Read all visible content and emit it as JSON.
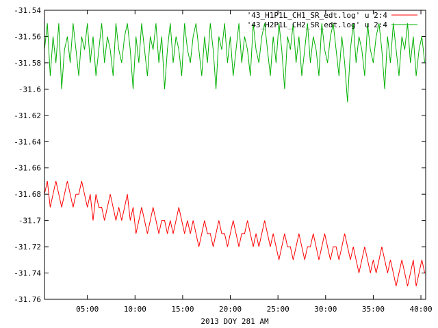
{
  "chart_data": {
    "type": "line",
    "xlabel": "2013 DOY 281 AM",
    "ylabel": "",
    "title": "",
    "xlim": [
      0.5,
      40.5
    ],
    "ylim": [
      -31.76,
      -31.54
    ],
    "x_ticks": [
      {
        "value": 5,
        "label": "05:00"
      },
      {
        "value": 10,
        "label": "10:00"
      },
      {
        "value": 15,
        "label": "15:00"
      },
      {
        "value": 20,
        "label": "20:00"
      },
      {
        "value": 25,
        "label": "25:00"
      },
      {
        "value": 30,
        "label": "30:00"
      },
      {
        "value": 35,
        "label": "35:00"
      },
      {
        "value": 40,
        "label": "40:00"
      }
    ],
    "y_ticks": [
      {
        "value": -31.54,
        "label": "-31.54"
      },
      {
        "value": -31.56,
        "label": "-31.56"
      },
      {
        "value": -31.58,
        "label": "-31.58"
      },
      {
        "value": -31.6,
        "label": "-31.6"
      },
      {
        "value": -31.62,
        "label": "-31.62"
      },
      {
        "value": -31.64,
        "label": "-31.64"
      },
      {
        "value": -31.66,
        "label": "-31.66"
      },
      {
        "value": -31.68,
        "label": "-31.68"
      },
      {
        "value": -31.7,
        "label": "-31.7"
      },
      {
        "value": -31.72,
        "label": "-31.72"
      },
      {
        "value": -31.74,
        "label": "-31.74"
      },
      {
        "value": -31.76,
        "label": "-31.76"
      }
    ],
    "grid": false,
    "legend_position": "top-right",
    "series": [
      {
        "name": "'43_H1P1L_CH1_SR_edt.log' u 2:4",
        "color": "#ff0000",
        "x": [
          0.5,
          0.8,
          1.1,
          1.4,
          1.7,
          2.0,
          2.3,
          2.6,
          2.9,
          3.2,
          3.5,
          3.8,
          4.1,
          4.4,
          4.7,
          5.0,
          5.3,
          5.6,
          5.9,
          6.2,
          6.5,
          6.8,
          7.1,
          7.4,
          7.7,
          8.0,
          8.3,
          8.6,
          8.9,
          9.2,
          9.5,
          9.8,
          10.1,
          10.4,
          10.7,
          11.0,
          11.3,
          11.6,
          11.9,
          12.2,
          12.5,
          12.8,
          13.1,
          13.4,
          13.7,
          14.0,
          14.3,
          14.6,
          14.9,
          15.2,
          15.5,
          15.8,
          16.1,
          16.4,
          16.7,
          17.0,
          17.3,
          17.6,
          17.9,
          18.2,
          18.5,
          18.8,
          19.1,
          19.4,
          19.7,
          20.0,
          20.3,
          20.6,
          20.9,
          21.2,
          21.5,
          21.8,
          22.1,
          22.4,
          22.7,
          23.0,
          23.3,
          23.6,
          23.9,
          24.2,
          24.5,
          24.8,
          25.1,
          25.4,
          25.7,
          26.0,
          26.3,
          26.6,
          26.9,
          27.2,
          27.5,
          27.8,
          28.1,
          28.4,
          28.7,
          29.0,
          29.3,
          29.6,
          29.9,
          30.2,
          30.5,
          30.8,
          31.1,
          31.4,
          31.7,
          32.0,
          32.3,
          32.6,
          32.9,
          33.2,
          33.5,
          33.8,
          34.1,
          34.4,
          34.7,
          35.0,
          35.3,
          35.6,
          35.9,
          36.2,
          36.5,
          36.8,
          37.1,
          37.4,
          37.7,
          38.0,
          38.3,
          38.6,
          38.9,
          39.2,
          39.5,
          39.8,
          40.1,
          40.4
        ],
        "y": [
          -31.68,
          -31.67,
          -31.69,
          -31.68,
          -31.67,
          -31.68,
          -31.69,
          -31.68,
          -31.67,
          -31.68,
          -31.69,
          -31.68,
          -31.68,
          -31.67,
          -31.68,
          -31.69,
          -31.68,
          -31.7,
          -31.68,
          -31.69,
          -31.69,
          -31.7,
          -31.69,
          -31.68,
          -31.69,
          -31.7,
          -31.69,
          -31.7,
          -31.69,
          -31.68,
          -31.7,
          -31.69,
          -31.71,
          -31.7,
          -31.69,
          -31.7,
          -31.71,
          -31.7,
          -31.69,
          -31.7,
          -31.71,
          -31.7,
          -31.7,
          -31.71,
          -31.7,
          -31.71,
          -31.7,
          -31.69,
          -31.7,
          -31.71,
          -31.7,
          -31.71,
          -31.7,
          -31.71,
          -31.72,
          -31.71,
          -31.7,
          -31.71,
          -31.71,
          -31.72,
          -31.71,
          -31.7,
          -31.71,
          -31.71,
          -31.72,
          -31.71,
          -31.7,
          -31.71,
          -31.72,
          -31.71,
          -31.71,
          -31.7,
          -31.71,
          -31.72,
          -31.71,
          -31.72,
          -31.71,
          -31.7,
          -31.71,
          -31.72,
          -31.71,
          -31.72,
          -31.73,
          -31.72,
          -31.71,
          -31.72,
          -31.72,
          -31.73,
          -31.72,
          -31.71,
          -31.72,
          -31.73,
          -31.72,
          -31.72,
          -31.71,
          -31.72,
          -31.73,
          -31.72,
          -31.71,
          -31.72,
          -31.73,
          -31.72,
          -31.72,
          -31.73,
          -31.72,
          -31.71,
          -31.72,
          -31.73,
          -31.72,
          -31.73,
          -31.74,
          -31.73,
          -31.72,
          -31.73,
          -31.74,
          -31.73,
          -31.74,
          -31.73,
          -31.72,
          -31.73,
          -31.74,
          -31.73,
          -31.74,
          -31.75,
          -31.74,
          -31.73,
          -31.74,
          -31.75,
          -31.74,
          -31.73,
          -31.75,
          -31.74,
          -31.73,
          -31.74
        ]
      },
      {
        "name": "'43_H2P1L_CH2_SR_edt.log' u 2:4",
        "color": "#00b000",
        "x": [
          0.5,
          0.8,
          1.1,
          1.4,
          1.7,
          2.0,
          2.3,
          2.6,
          2.9,
          3.2,
          3.5,
          3.8,
          4.1,
          4.4,
          4.7,
          5.0,
          5.3,
          5.6,
          5.9,
          6.2,
          6.5,
          6.8,
          7.1,
          7.4,
          7.7,
          8.0,
          8.3,
          8.6,
          8.9,
          9.2,
          9.5,
          9.8,
          10.1,
          10.4,
          10.7,
          11.0,
          11.3,
          11.6,
          11.9,
          12.2,
          12.5,
          12.8,
          13.1,
          13.4,
          13.7,
          14.0,
          14.3,
          14.6,
          14.9,
          15.2,
          15.5,
          15.8,
          16.1,
          16.4,
          16.7,
          17.0,
          17.3,
          17.6,
          17.9,
          18.2,
          18.5,
          18.8,
          19.1,
          19.4,
          19.7,
          20.0,
          20.3,
          20.6,
          20.9,
          21.2,
          21.5,
          21.8,
          22.1,
          22.4,
          22.7,
          23.0,
          23.3,
          23.6,
          23.9,
          24.2,
          24.5,
          24.8,
          25.1,
          25.4,
          25.7,
          26.0,
          26.3,
          26.6,
          26.9,
          27.2,
          27.5,
          27.8,
          28.1,
          28.4,
          28.7,
          29.0,
          29.3,
          29.6,
          29.9,
          30.2,
          30.5,
          30.8,
          31.1,
          31.4,
          31.7,
          32.0,
          32.3,
          32.6,
          32.9,
          33.2,
          33.5,
          33.8,
          34.1,
          34.4,
          34.7,
          35.0,
          35.3,
          35.6,
          35.9,
          36.2,
          36.5,
          36.8,
          37.1,
          37.4,
          37.7,
          38.0,
          38.3,
          38.6,
          38.9,
          39.2,
          39.5,
          39.8,
          40.1,
          40.4
        ],
        "y": [
          -31.57,
          -31.55,
          -31.59,
          -31.56,
          -31.58,
          -31.55,
          -31.6,
          -31.57,
          -31.56,
          -31.58,
          -31.55,
          -31.57,
          -31.59,
          -31.56,
          -31.57,
          -31.55,
          -31.58,
          -31.56,
          -31.59,
          -31.57,
          -31.55,
          -31.58,
          -31.56,
          -31.57,
          -31.59,
          -31.55,
          -31.57,
          -31.58,
          -31.56,
          -31.55,
          -31.57,
          -31.6,
          -31.56,
          -31.58,
          -31.55,
          -31.57,
          -31.59,
          -31.56,
          -31.57,
          -31.55,
          -31.58,
          -31.56,
          -31.6,
          -31.57,
          -31.55,
          -31.58,
          -31.56,
          -31.57,
          -31.59,
          -31.55,
          -31.57,
          -31.58,
          -31.56,
          -31.55,
          -31.57,
          -31.59,
          -31.56,
          -31.58,
          -31.55,
          -31.57,
          -31.6,
          -31.56,
          -31.57,
          -31.55,
          -31.58,
          -31.56,
          -31.59,
          -31.57,
          -31.55,
          -31.58,
          -31.56,
          -31.57,
          -31.59,
          -31.55,
          -31.57,
          -31.58,
          -31.56,
          -31.55,
          -31.57,
          -31.59,
          -31.56,
          -31.58,
          -31.55,
          -31.57,
          -31.6,
          -31.56,
          -31.57,
          -31.55,
          -31.58,
          -31.56,
          -31.59,
          -31.57,
          -31.55,
          -31.58,
          -31.56,
          -31.57,
          -31.59,
          -31.55,
          -31.57,
          -31.58,
          -31.56,
          -31.55,
          -31.57,
          -31.59,
          -31.56,
          -31.58,
          -31.61,
          -31.57,
          -31.55,
          -31.58,
          -31.56,
          -31.57,
          -31.59,
          -31.55,
          -31.57,
          -31.58,
          -31.56,
          -31.55,
          -31.57,
          -31.6,
          -31.56,
          -31.58,
          -31.55,
          -31.57,
          -31.59,
          -31.56,
          -31.57,
          -31.55,
          -31.58,
          -31.56,
          -31.59,
          -31.57,
          -31.56,
          -31.58
        ]
      }
    ]
  }
}
